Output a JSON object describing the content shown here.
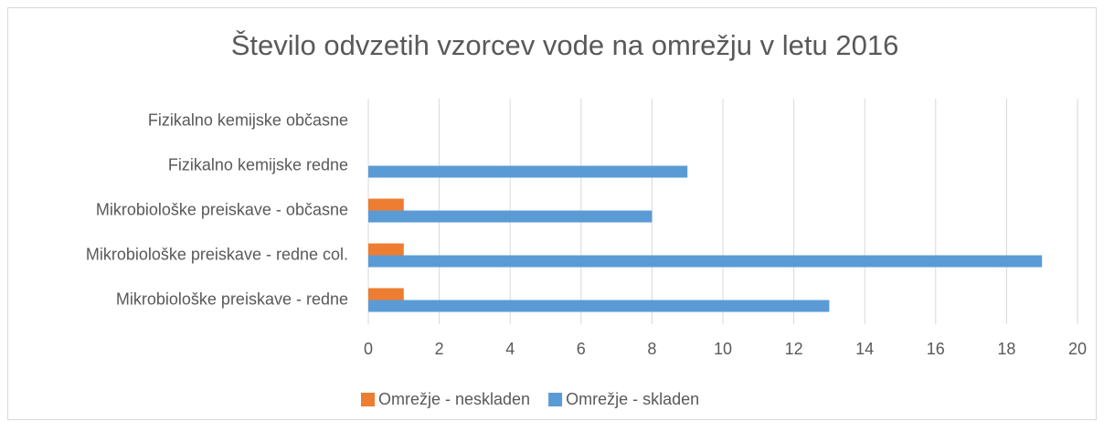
{
  "chart_data": {
    "type": "hbar",
    "title": "Število odvzetih vzorcev vode na omrežju v letu 2016",
    "categories": [
      "Fizikalno kemijske občasne",
      "Fizikalno kemijske redne",
      "Mikrobiološke preiskave - občasne",
      "Mikrobiološke preiskave - redne col.",
      "Mikrobiološke preiskave - redne"
    ],
    "series": [
      {
        "name": "Omrežje - neskladen",
        "color": "#ed7d31",
        "values": [
          0,
          0,
          1,
          1,
          1
        ]
      },
      {
        "name": "Omrežje - skladen",
        "color": "#5b9bd5",
        "values": [
          0,
          9,
          8,
          19,
          13
        ]
      }
    ],
    "xlim": [
      0,
      20
    ],
    "xticks": [
      0,
      2,
      4,
      6,
      8,
      10,
      12,
      14,
      16,
      18,
      20
    ],
    "grid": true,
    "legend": "bottom"
  }
}
